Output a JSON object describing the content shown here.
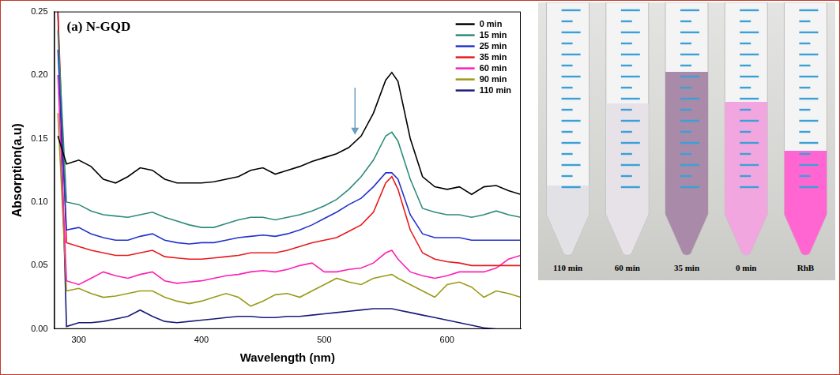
{
  "chart_data": {
    "type": "line",
    "title": "(a) N-GQD",
    "x_label": "Wavelength (nm)",
    "y_label": "Absorption(a.u)",
    "x": [
      283,
      290,
      300,
      310,
      320,
      330,
      340,
      350,
      360,
      370,
      380,
      390,
      400,
      410,
      420,
      430,
      440,
      450,
      460,
      470,
      480,
      490,
      500,
      510,
      520,
      530,
      540,
      550,
      555,
      560,
      570,
      580,
      590,
      600,
      610,
      620,
      630,
      640,
      650,
      660
    ],
    "series": [
      {
        "name": "0 min",
        "color": "#000000",
        "values": [
          0.152,
          0.13,
          0.133,
          0.128,
          0.118,
          0.115,
          0.12,
          0.127,
          0.125,
          0.118,
          0.115,
          0.115,
          0.115,
          0.116,
          0.118,
          0.12,
          0.125,
          0.127,
          0.122,
          0.125,
          0.128,
          0.132,
          0.135,
          0.138,
          0.143,
          0.152,
          0.17,
          0.196,
          0.202,
          0.195,
          0.15,
          0.12,
          0.112,
          0.11,
          0.112,
          0.106,
          0.112,
          0.113,
          0.109,
          0.106
        ]
      },
      {
        "name": "15 min",
        "color": "#2e8b7a",
        "values": [
          0.235,
          0.1,
          0.098,
          0.093,
          0.09,
          0.089,
          0.088,
          0.09,
          0.092,
          0.088,
          0.085,
          0.082,
          0.08,
          0.08,
          0.083,
          0.086,
          0.088,
          0.088,
          0.086,
          0.088,
          0.09,
          0.093,
          0.097,
          0.102,
          0.11,
          0.12,
          0.133,
          0.152,
          0.155,
          0.148,
          0.118,
          0.095,
          0.092,
          0.09,
          0.09,
          0.088,
          0.09,
          0.093,
          0.09,
          0.088
        ]
      },
      {
        "name": "25 min",
        "color": "#2233cc",
        "values": [
          0.22,
          0.078,
          0.08,
          0.075,
          0.072,
          0.07,
          0.07,
          0.073,
          0.075,
          0.07,
          0.068,
          0.067,
          0.068,
          0.068,
          0.07,
          0.072,
          0.073,
          0.074,
          0.073,
          0.075,
          0.078,
          0.082,
          0.087,
          0.092,
          0.098,
          0.103,
          0.112,
          0.123,
          0.123,
          0.118,
          0.09,
          0.075,
          0.072,
          0.072,
          0.072,
          0.07,
          0.07,
          0.07,
          0.07,
          0.07
        ]
      },
      {
        "name": "35 min",
        "color": "#e8191c",
        "values": [
          0.25,
          0.068,
          0.065,
          0.062,
          0.06,
          0.058,
          0.058,
          0.06,
          0.062,
          0.057,
          0.056,
          0.055,
          0.055,
          0.056,
          0.057,
          0.058,
          0.06,
          0.06,
          0.06,
          0.062,
          0.065,
          0.068,
          0.07,
          0.072,
          0.077,
          0.082,
          0.092,
          0.115,
          0.12,
          0.11,
          0.078,
          0.06,
          0.055,
          0.053,
          0.052,
          0.05,
          0.05,
          0.05,
          0.05,
          0.05
        ]
      },
      {
        "name": "60 min",
        "color": "#ff1fb4",
        "values": [
          0.2,
          0.038,
          0.035,
          0.04,
          0.045,
          0.042,
          0.04,
          0.043,
          0.045,
          0.038,
          0.036,
          0.037,
          0.038,
          0.04,
          0.042,
          0.043,
          0.045,
          0.046,
          0.045,
          0.047,
          0.05,
          0.052,
          0.045,
          0.045,
          0.047,
          0.048,
          0.052,
          0.06,
          0.062,
          0.055,
          0.045,
          0.042,
          0.04,
          0.042,
          0.045,
          0.045,
          0.045,
          0.048,
          0.055,
          0.058
        ]
      },
      {
        "name": "90 min",
        "color": "#9a9a1a",
        "values": [
          0.17,
          0.03,
          0.032,
          0.028,
          0.025,
          0.026,
          0.028,
          0.03,
          0.03,
          0.025,
          0.022,
          0.02,
          0.022,
          0.025,
          0.028,
          0.025,
          0.018,
          0.022,
          0.027,
          0.028,
          0.025,
          0.03,
          0.035,
          0.04,
          0.037,
          0.035,
          0.04,
          0.042,
          0.043,
          0.04,
          0.035,
          0.03,
          0.025,
          0.035,
          0.037,
          0.033,
          0.025,
          0.03,
          0.028,
          0.025
        ]
      },
      {
        "name": "110 min",
        "color": "#1a1a7a",
        "values": [
          0.25,
          0.002,
          0.005,
          0.005,
          0.006,
          0.008,
          0.01,
          0.015,
          0.01,
          0.006,
          0.005,
          0.006,
          0.007,
          0.008,
          0.009,
          0.01,
          0.01,
          0.009,
          0.009,
          0.01,
          0.01,
          0.011,
          0.012,
          0.013,
          0.014,
          0.015,
          0.016,
          0.016,
          0.016,
          0.015,
          0.013,
          0.011,
          0.009,
          0.007,
          0.005,
          0.003,
          0.001,
          0.0,
          0.0,
          0.0
        ]
      }
    ],
    "xlim": [
      280,
      660
    ],
    "xticks": [
      300,
      400,
      500,
      600
    ],
    "ylim": [
      0,
      0.25
    ],
    "yticks": [
      {
        "value": 0,
        "label": "0.00"
      },
      0.05,
      {
        "value": 0.1,
        "label": "0.10"
      },
      0.15,
      {
        "value": 0.2,
        "label": "0.20"
      },
      0.25
    ],
    "grid": false,
    "legend": "upper right",
    "arrow": {
      "x": 525,
      "y_start": 0.19,
      "y_end": 0.153
    }
  },
  "photo": {
    "tubes": [
      "110 min",
      "60 min",
      "35 min",
      "0 min",
      "RhB"
    ]
  }
}
